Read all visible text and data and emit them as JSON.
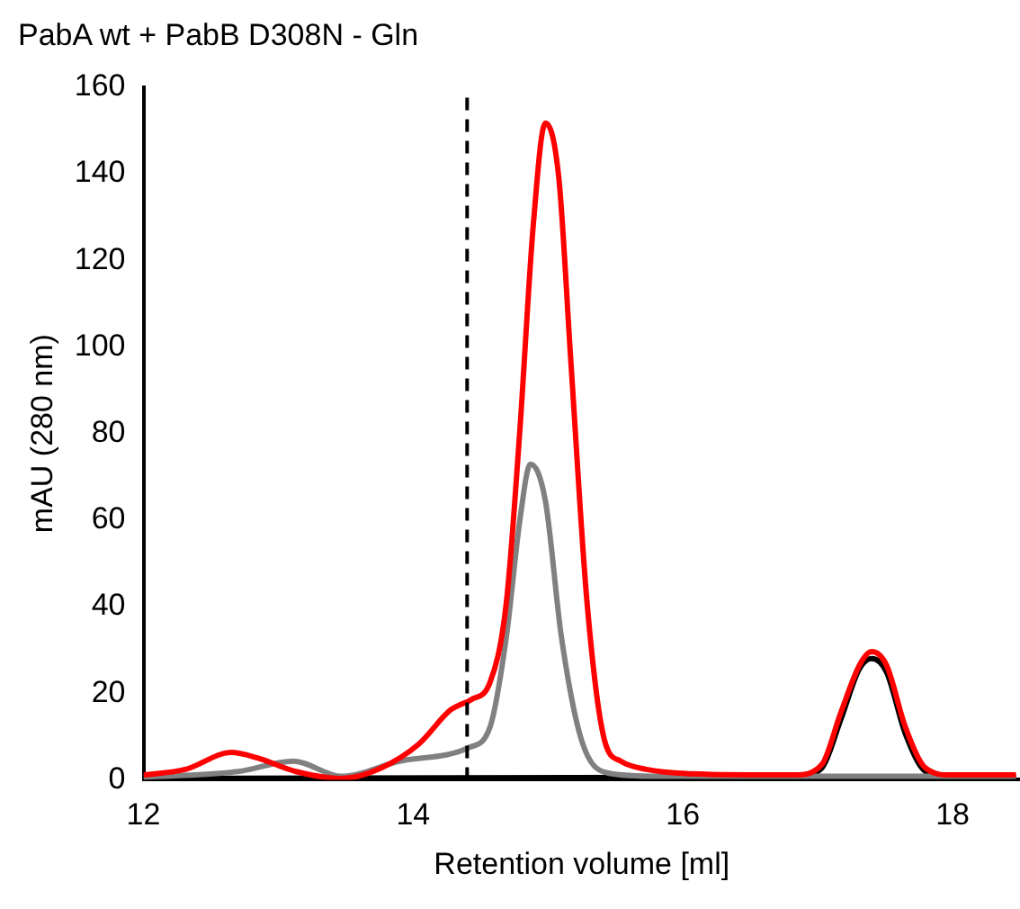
{
  "chart_data": {
    "type": "line",
    "title": "PabA wt + PabB D308N - Gln",
    "xlabel": "Retention volume [ml]",
    "ylabel": "mAU (280 nm)",
    "xlim": [
      12,
      18.5
    ],
    "xticks": [
      12,
      14,
      16,
      18
    ],
    "ylim": [
      0,
      160
    ],
    "yticks": [
      0,
      20,
      40,
      60,
      80,
      100,
      120,
      140,
      160
    ],
    "grid": false,
    "legend": false,
    "marker": "none",
    "line_style": "solid",
    "ref_lines": [
      {
        "axis": "x",
        "value": 14.4,
        "color": "#000000",
        "line_style": "dashed"
      }
    ],
    "series": [
      {
        "color": "#ff0000",
        "x": [
          12,
          12.31,
          12.65,
          12.84,
          13.13,
          13.47,
          13.76,
          14.04,
          14.28,
          14.43,
          14.57,
          14.69,
          14.79,
          14.89,
          14.98,
          15.08,
          15.17,
          15.29,
          15.42,
          15.54,
          15.73,
          16.06,
          16.83,
          17.03,
          17.17,
          17.31,
          17.4,
          17.51,
          17.65,
          17.8,
          17.99,
          18.47
        ],
        "values": [
          1.1,
          2.4,
          6.3,
          5.1,
          1.9,
          0.3,
          2.7,
          8.2,
          16.2,
          18.5,
          22.5,
          40.7,
          80.3,
          127.9,
          151.7,
          139,
          96.3,
          40.7,
          9,
          4.3,
          2.4,
          1.4,
          1.1,
          3.5,
          15.4,
          26.5,
          29.6,
          26.5,
          12.2,
          2.7,
          1.1,
          1.1
        ]
      },
      {
        "color": "#808080",
        "x": [
          12,
          12.7,
          13.11,
          13.47,
          13.9,
          14.41,
          14.57,
          14.69,
          14.79,
          14.87,
          14.98,
          15.1,
          15.25,
          15.44,
          15.82,
          18.47
        ],
        "values": [
          0.6,
          1.9,
          4.3,
          0.8,
          4.3,
          7.4,
          12.2,
          32.8,
          59.7,
          72.9,
          64.5,
          32.8,
          9,
          1.6,
          0.8,
          0.8
        ]
      },
      {
        "color": "#000000",
        "x": [
          12,
          16.83,
          17.03,
          17.17,
          17.31,
          17.4,
          17.51,
          17.65,
          17.8,
          17.99,
          18.47
        ],
        "values": [
          0.3,
          0.6,
          2.7,
          13.8,
          25.7,
          28,
          24.9,
          10.6,
          1.9,
          0.6,
          0.6
        ]
      }
    ]
  }
}
